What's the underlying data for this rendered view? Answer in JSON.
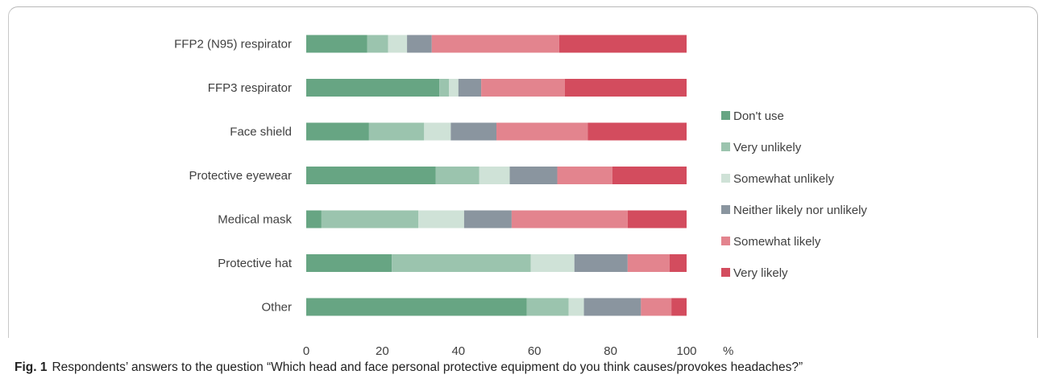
{
  "caption": {
    "label": "Fig. 1",
    "text": "Respondents’ answers to the question “Which head and face personal protective equipment do you think causes/provokes headaches?”"
  },
  "chart_data": {
    "type": "bar",
    "orientation": "horizontal",
    "stacked": true,
    "categories": [
      "FFP2 (N95) respirator",
      "FFP3 respirator",
      "Face shield",
      "Protective eyewear",
      "Medical mask",
      "Protective hat",
      "Other"
    ],
    "series": [
      {
        "name": "Don't use",
        "color": "#67a583",
        "values": [
          16,
          35,
          16.5,
          34,
          4,
          22.5,
          58
        ]
      },
      {
        "name": "Very unlikely",
        "color": "#9bc4ae",
        "values": [
          5.5,
          2.5,
          14.5,
          11.5,
          25.5,
          36.5,
          11
        ]
      },
      {
        "name": "Somewhat unlikely",
        "color": "#cfe2d7",
        "values": [
          5,
          2.5,
          7,
          8,
          12,
          11.5,
          4
        ]
      },
      {
        "name": "Neither likely nor unlikely",
        "color": "#8a959f",
        "values": [
          6.5,
          6,
          12,
          12.5,
          12.5,
          14,
          15
        ]
      },
      {
        "name": "Somewhat likely",
        "color": "#e3848e",
        "values": [
          33.5,
          22,
          24,
          14.5,
          30.5,
          11,
          8
        ]
      },
      {
        "name": "Very likely",
        "color": "#d34c5e",
        "values": [
          33.5,
          32,
          26,
          19.5,
          15.5,
          4.5,
          4
        ]
      }
    ],
    "xlim": [
      0,
      100
    ],
    "xticks": [
      "0",
      "20",
      "40",
      "60",
      "80",
      "100"
    ],
    "x_unit": "%",
    "legend_position": "right",
    "grid": false
  }
}
